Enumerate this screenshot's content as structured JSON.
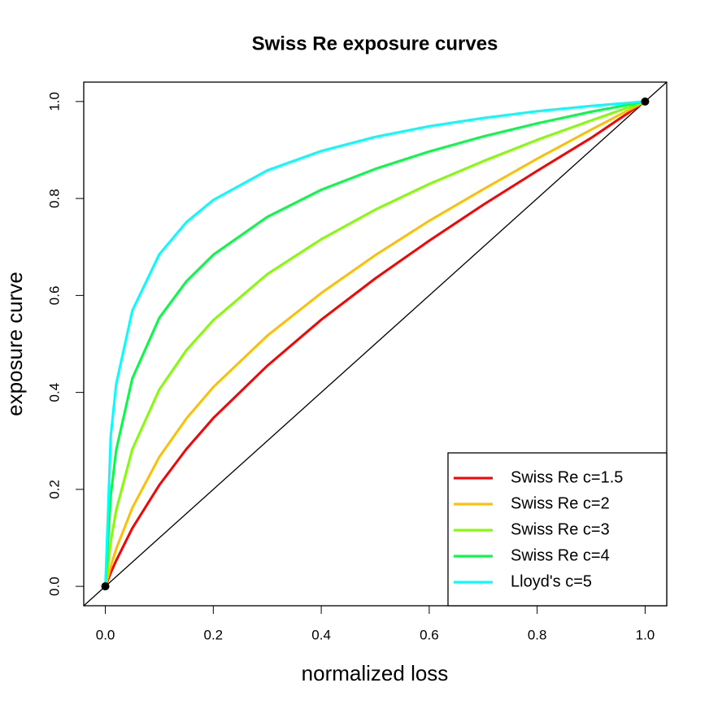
{
  "chart_data": {
    "type": "line",
    "title": "Swiss Re exposure curves",
    "x_label": "normalized loss",
    "y_label": "exposure curve",
    "x": [
      0,
      0.01,
      0.02,
      0.05,
      0.1,
      0.15,
      0.2,
      0.3,
      0.4,
      0.5,
      0.6,
      0.7,
      0.8,
      0.9,
      1
    ],
    "series": [
      {
        "name": "Swiss Re c=1.5",
        "color": "#ff0000",
        "values": [
          0,
          0.028,
          0.053,
          0.12,
          0.209,
          0.283,
          0.347,
          0.455,
          0.55,
          0.635,
          0.713,
          0.787,
          0.857,
          0.925,
          1
        ]
      },
      {
        "name": "Swiss Re c=2",
        "color": "#ffbf00",
        "values": [
          0,
          0.041,
          0.077,
          0.162,
          0.267,
          0.346,
          0.411,
          0.517,
          0.605,
          0.683,
          0.754,
          0.819,
          0.882,
          0.942,
          1
        ]
      },
      {
        "name": "Swiss Re c=3",
        "color": "#80ff00",
        "values": [
          0,
          0.092,
          0.157,
          0.283,
          0.406,
          0.487,
          0.549,
          0.644,
          0.716,
          0.777,
          0.83,
          0.877,
          0.921,
          0.961,
          1
        ]
      },
      {
        "name": "Swiss Re c=4",
        "color": "#00ff40",
        "values": [
          0,
          0.187,
          0.281,
          0.429,
          0.554,
          0.629,
          0.684,
          0.762,
          0.818,
          0.861,
          0.897,
          0.928,
          0.955,
          0.979,
          1
        ]
      },
      {
        "name": "Lloyd's c=5",
        "color": "#00ffff",
        "values": [
          0,
          0.31,
          0.417,
          0.569,
          0.685,
          0.751,
          0.797,
          0.858,
          0.898,
          0.927,
          0.949,
          0.966,
          0.98,
          0.991,
          1
        ]
      }
    ],
    "points": {
      "x": [
        0,
        1
      ],
      "y": [
        0,
        1
      ],
      "color": "#000000"
    },
    "diagonal": true,
    "xlim": [
      -0.04,
      1.04
    ],
    "ylim": [
      -0.04,
      1.04
    ],
    "xticks": [
      {
        "value": 0,
        "label": "0.0"
      },
      0.2,
      0.4,
      0.6,
      0.8,
      {
        "value": 1,
        "label": "1.0"
      }
    ],
    "yticks": [
      {
        "value": 0,
        "label": "0.0"
      },
      0.2,
      0.4,
      0.6,
      0.8,
      {
        "value": 1,
        "label": "1.0"
      }
    ],
    "legend": "bottomright"
  }
}
